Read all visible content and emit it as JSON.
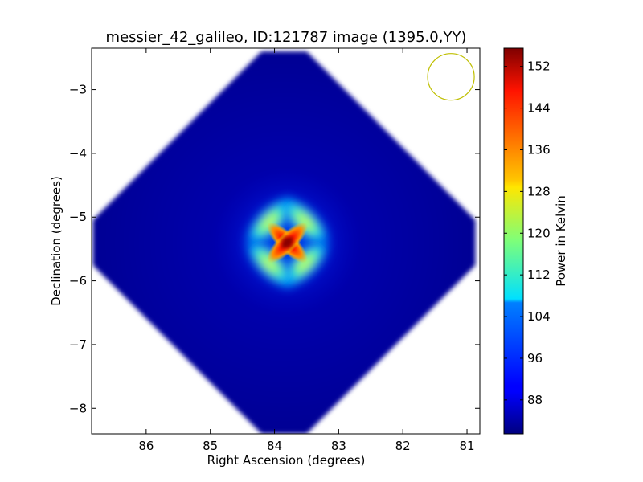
{
  "chart_data": {
    "type": "heatmap",
    "title": "messier_42_galileo, ID:121787 image (1395.0,YY)",
    "xlabel": "Right Ascension (degrees)",
    "ylabel": "Declination (degrees)",
    "xlim": [
      86.85,
      80.8
    ],
    "ylim": [
      -8.4,
      -2.35
    ],
    "x_ticks": [
      86,
      85,
      84,
      83,
      82,
      81
    ],
    "x_tick_labels": [
      "86",
      "85",
      "84",
      "83",
      "82",
      "81"
    ],
    "y_ticks": [
      -3,
      -4,
      -5,
      -6,
      -7,
      -8
    ],
    "y_tick_labels": [
      "−3",
      "−4",
      "−5",
      "−6",
      "−7",
      "−8"
    ],
    "colorbar": {
      "label": "Power in Kelvin",
      "range": [
        81.5,
        155.5
      ],
      "ticks": [
        88,
        96,
        104,
        112,
        120,
        128,
        136,
        144,
        152
      ],
      "tick_labels": [
        "88",
        "96",
        "104",
        "112",
        "120",
        "128",
        "136",
        "144",
        "152"
      ],
      "colormap": "jet"
    },
    "image": {
      "footprint": "rotated square",
      "footprint_center_ra": 83.85,
      "footprint_center_dec": -5.4,
      "background_kelvin": 85,
      "source_ra": 83.8,
      "source_dec": -5.4,
      "source_peak_kelvin": 154
    },
    "beam_marker": {
      "ra": 81.25,
      "dec": -2.8,
      "color": "#bfbf00"
    },
    "grid": false,
    "legend": "none"
  }
}
